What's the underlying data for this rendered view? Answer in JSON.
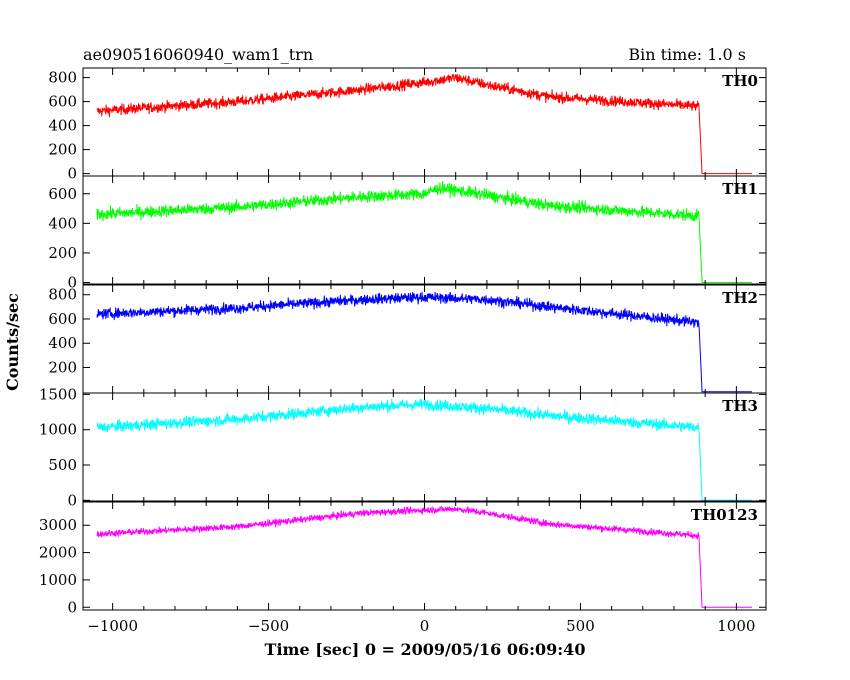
{
  "chart_data": {
    "type": "line",
    "title_left": "ae090516060940_wam1_trn",
    "title_right": "Bin time: 1.0 s",
    "xlabel": "Time [sec] 0 = 2009/05/16 06:09:40",
    "ylabel": "Counts/sec",
    "xlim": [
      -1095,
      1095
    ],
    "x_ticks": [
      -1000,
      -500,
      0,
      500,
      1000
    ],
    "x_tick_labels": [
      "−1000",
      "−500",
      "0",
      "500",
      "1000"
    ],
    "grid": false,
    "panels": [
      {
        "name": "TH0",
        "color": "#ff0000",
        "ylim": [
          -20,
          880
        ],
        "y_ticks": [
          0,
          200,
          400,
          600,
          800
        ],
        "y_tick_labels": [
          "0",
          "200",
          "400",
          "600",
          "800"
        ],
        "noise": 22,
        "profile": [
          [
            -1050,
            520
          ],
          [
            -600,
            600
          ],
          [
            -200,
            700
          ],
          [
            0,
            760
          ],
          [
            100,
            800
          ],
          [
            200,
            740
          ],
          [
            400,
            640
          ],
          [
            880,
            560
          ],
          [
            890,
            0
          ],
          [
            1050,
            0
          ]
        ]
      },
      {
        "name": "TH1",
        "color": "#00ff00",
        "ylim": [
          -10,
          720
        ],
        "y_ticks": [
          0,
          200,
          400,
          600
        ],
        "y_tick_labels": [
          "0",
          "200",
          "400",
          "600"
        ],
        "noise": 20,
        "profile": [
          [
            -1050,
            460
          ],
          [
            -600,
            510
          ],
          [
            -200,
            580
          ],
          [
            0,
            600
          ],
          [
            50,
            640
          ],
          [
            200,
            590
          ],
          [
            400,
            520
          ],
          [
            880,
            450
          ],
          [
            890,
            0
          ],
          [
            1050,
            0
          ]
        ]
      },
      {
        "name": "TH2",
        "color": "#0000ff",
        "ylim": [
          -10,
          880
        ],
        "y_ticks": [
          200,
          400,
          600,
          800
        ],
        "y_tick_labels": [
          "200",
          "400",
          "600",
          "800"
        ],
        "noise": 22,
        "profile": [
          [
            -1050,
            640
          ],
          [
            -600,
            690
          ],
          [
            -200,
            760
          ],
          [
            0,
            780
          ],
          [
            200,
            760
          ],
          [
            400,
            700
          ],
          [
            880,
            570
          ],
          [
            890,
            0
          ],
          [
            1050,
            0
          ]
        ]
      },
      {
        "name": "TH3",
        "color": "#00ffff",
        "ylim": [
          -10,
          1520
        ],
        "y_ticks": [
          0,
          500,
          1000,
          1500
        ],
        "y_tick_labels": [
          "0",
          "500",
          "1000",
          "1500"
        ],
        "noise": 40,
        "profile": [
          [
            -1050,
            1030
          ],
          [
            -600,
            1150
          ],
          [
            -200,
            1320
          ],
          [
            0,
            1360
          ],
          [
            200,
            1300
          ],
          [
            400,
            1200
          ],
          [
            880,
            1030
          ],
          [
            890,
            0
          ],
          [
            1050,
            0
          ]
        ]
      },
      {
        "name": "TH0123",
        "color": "#ff00ff",
        "ylim": [
          -100,
          3850
        ],
        "y_ticks": [
          0,
          1000,
          2000,
          3000
        ],
        "y_tick_labels": [
          "0",
          "1000",
          "2000",
          "3000"
        ],
        "noise": 60,
        "profile": [
          [
            -1050,
            2680
          ],
          [
            -600,
            2950
          ],
          [
            -200,
            3450
          ],
          [
            0,
            3550
          ],
          [
            100,
            3600
          ],
          [
            200,
            3450
          ],
          [
            400,
            3050
          ],
          [
            880,
            2620
          ],
          [
            890,
            0
          ],
          [
            1050,
            0
          ]
        ]
      }
    ]
  }
}
